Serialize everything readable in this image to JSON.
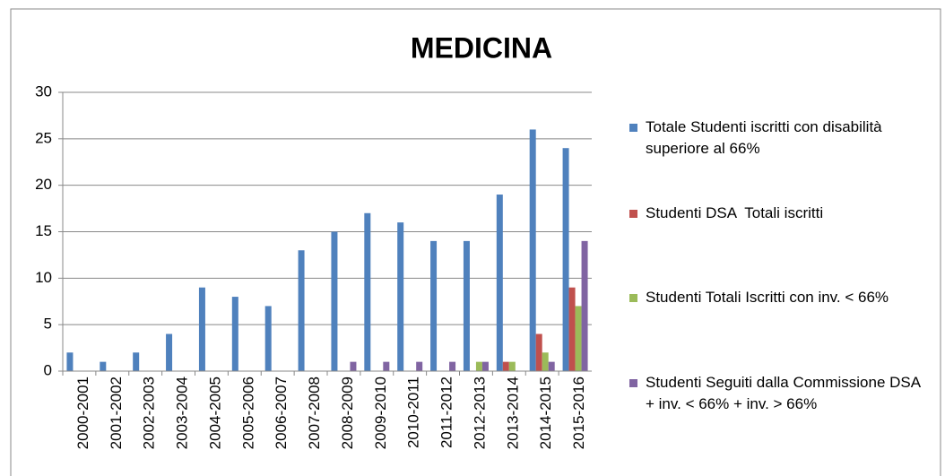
{
  "chart_data": {
    "type": "bar",
    "title": "MEDICINA",
    "categories": [
      "2000-2001",
      "2001-2002",
      "2002-2003",
      "2003-2004",
      "2004-2005",
      "2005-2006",
      "2006-2007",
      "2007-2008",
      "2008-2009",
      "2009-2010",
      "2010-2011",
      "2011-2012",
      "2012-2013",
      "2013-2014",
      "2014-2015",
      "2015-2016"
    ],
    "series": [
      {
        "name": "Totale Studenti iscritti con disabilità superiore al 66%",
        "color": "#4f81bd",
        "values": [
          2,
          1,
          2,
          4,
          9,
          8,
          7,
          13,
          15,
          17,
          16,
          14,
          14,
          19,
          26,
          24
        ]
      },
      {
        "name": "Studenti DSA  Totali iscritti",
        "color": "#c0504d",
        "values": [
          0,
          0,
          0,
          0,
          0,
          0,
          0,
          0,
          0,
          0,
          0,
          0,
          0,
          1,
          4,
          9
        ]
      },
      {
        "name": "Studenti Totali Iscritti con inv. < 66%",
        "color": "#9bbb59",
        "values": [
          0,
          0,
          0,
          0,
          0,
          0,
          0,
          0,
          0,
          0,
          0,
          0,
          1,
          1,
          2,
          7
        ]
      },
      {
        "name": "Studenti Seguiti dalla Commissione DSA + inv. < 66% + inv. > 66%",
        "color": "#8064a2",
        "values": [
          0,
          0,
          0,
          0,
          0,
          0,
          0,
          0,
          1,
          1,
          1,
          1,
          1,
          0,
          1,
          14
        ]
      }
    ],
    "ylim": [
      0,
      30
    ],
    "yticks": [
      0,
      5,
      10,
      15,
      20,
      25,
      30
    ],
    "grid": true,
    "legend": "right"
  }
}
